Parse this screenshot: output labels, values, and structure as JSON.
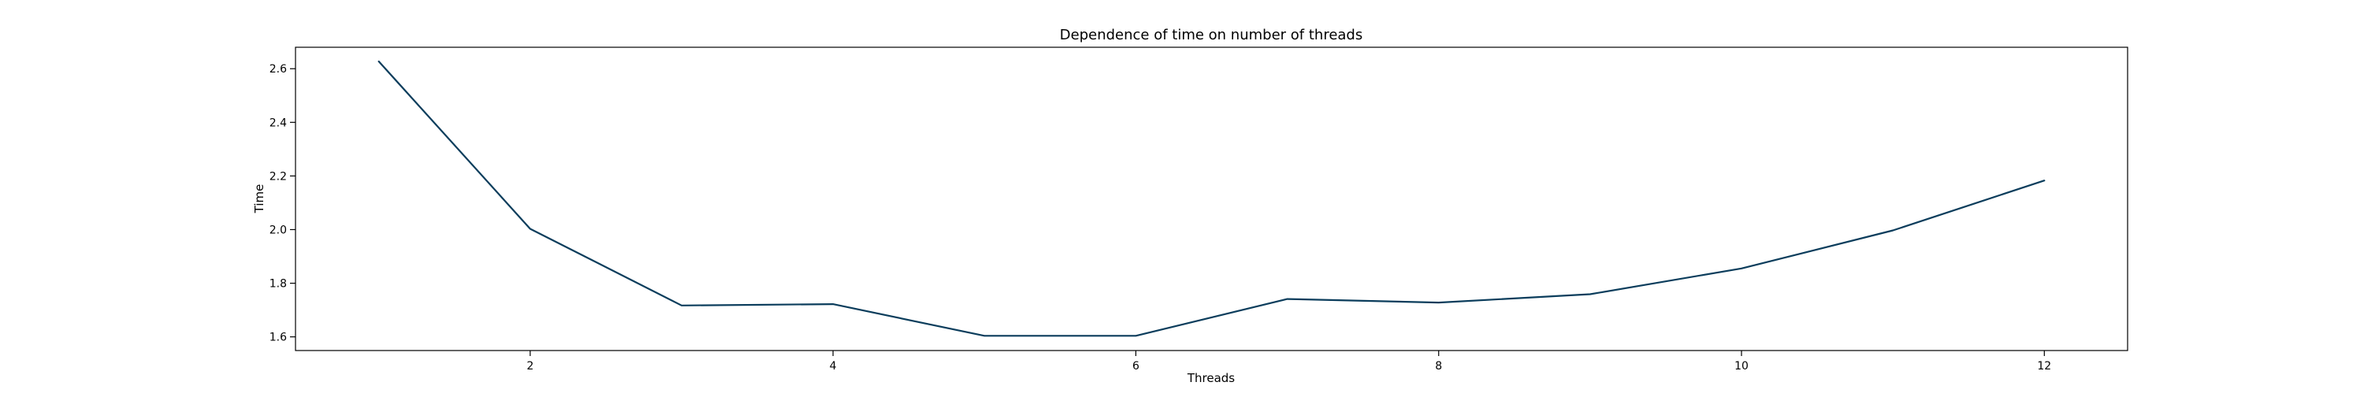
{
  "chart_data": {
    "type": "line",
    "title": "Dependence of time on number of threads",
    "xlabel": "Threads",
    "ylabel": "Time",
    "xlim": [
      0.45,
      12.55
    ],
    "ylim": [
      1.549,
      2.68
    ],
    "x_ticks": [
      2,
      4,
      6,
      8,
      10,
      12
    ],
    "y_ticks": [
      1.6,
      1.8,
      2.0,
      2.2,
      2.4,
      2.6
    ],
    "x_tick_labels": [
      "2",
      "4",
      "6",
      "8",
      "10",
      "12"
    ],
    "y_tick_labels": [
      "1.6",
      "1.8",
      "2.0",
      "2.2",
      "2.4",
      "2.6"
    ],
    "grid": false,
    "series": [
      {
        "color": "#0b3d5c",
        "x": [
          1,
          2,
          3,
          4,
          5,
          6,
          7,
          8,
          9,
          10,
          11,
          12
        ],
        "y": [
          2.627,
          2.003,
          1.717,
          1.722,
          1.604,
          1.604,
          1.741,
          1.728,
          1.759,
          1.855,
          1.997,
          2.183
        ]
      }
    ]
  }
}
